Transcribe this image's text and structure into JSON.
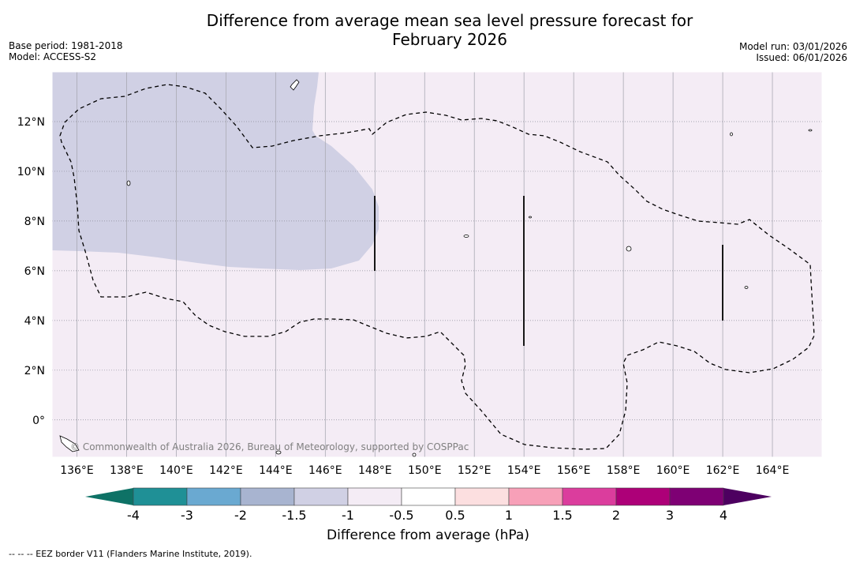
{
  "title_line1": "Difference from average mean sea level pressure forecast for",
  "title_line2": "February 2026",
  "meta": {
    "base_period": "Base period: 1981-2018",
    "model": "Model: ACCESS-S2",
    "model_run": "Model run: 03/01/2026",
    "issued": "Issued: 06/01/2026"
  },
  "map": {
    "lon_labels": [
      "136°E",
      "138°E",
      "140°E",
      "142°E",
      "144°E",
      "146°E",
      "148°E",
      "150°E",
      "152°E",
      "154°E",
      "156°E",
      "158°E",
      "160°E",
      "162°E",
      "164°E"
    ],
    "lat_labels": [
      "12°N",
      "10°N",
      "8°N",
      "6°N",
      "4°N",
      "2°N",
      "0°"
    ],
    "lon_range": [
      135,
      166
    ],
    "lat_range": [
      -1.5,
      14
    ],
    "background_color": "#f4ecf5",
    "anomaly_color": "#d0d0e4",
    "copyright": "© Commonwealth of Australia 2026, Bureau of Meteorology, supported by COSPPac"
  },
  "colorbar": {
    "labels": [
      "-4",
      "-3",
      "-2",
      "-1.5",
      "-1",
      "-0.5",
      "0.5",
      "1",
      "1.5",
      "2",
      "3",
      "4"
    ],
    "colors": [
      "#1f9096",
      "#6aa9d1",
      "#a8b4d0",
      "#d0d0e4",
      "#f4ecf5",
      "#ffffff",
      "#fcdfe0",
      "#f7a0b8",
      "#db3d9d",
      "#ad0078",
      "#7e0074"
    ],
    "low_extend_color": "#0e7266",
    "high_extend_color": "#4d0060",
    "title": "Difference from average (hPa)"
  },
  "footnote": "--  --  -- EEZ border V11 (Flanders Marine Institute, 2019)."
}
